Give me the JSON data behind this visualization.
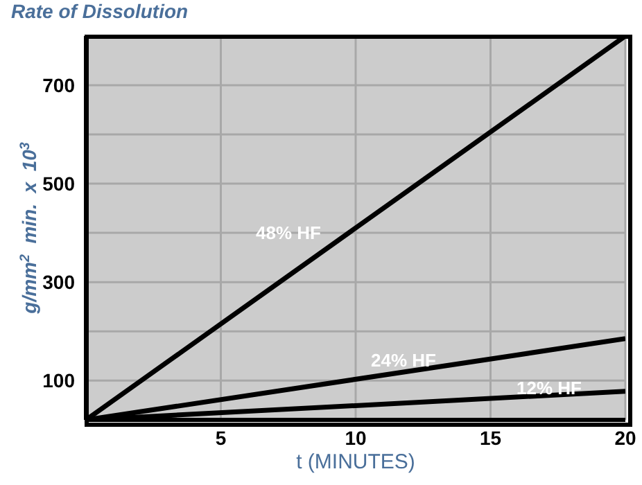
{
  "chart_data": {
    "type": "line",
    "title": "Rate of Dissolution",
    "xlabel": "t (MINUTES)",
    "ylabel": "g/mm$^{2}$  min.  x  10$^{3}$",
    "x": [
      0,
      20
    ],
    "series": [
      {
        "color": "#000000",
        "values": [
          20,
          800
        ]
      },
      {
        "color": "#000000",
        "values": [
          20,
          185
        ]
      },
      {
        "color": "#000000",
        "values": [
          20,
          78
        ]
      }
    ],
    "annotations": [
      "48% HF",
      "24% HF",
      "12% HF"
    ],
    "xlim": [
      0,
      20
    ],
    "xticks": [
      5,
      10,
      15,
      20
    ],
    "ylim": [
      20,
      800
    ],
    "yticks": [
      100,
      {
        "value": 200,
        "label": null
      },
      300,
      {
        "value": 400,
        "label": null
      },
      500,
      {
        "value": 600,
        "label": null
      },
      700
    ],
    "grid": true,
    "marker": "none",
    "line_style": "solid"
  }
}
